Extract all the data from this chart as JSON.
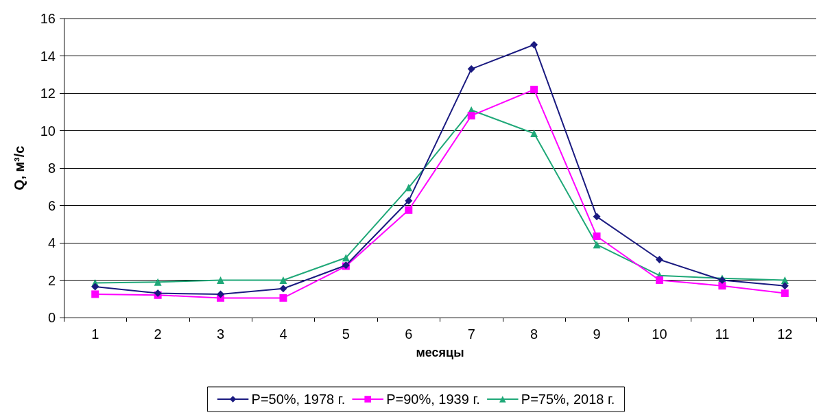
{
  "chart_data": {
    "type": "line",
    "xlabel": "месяцы",
    "ylabel": "Q, м³/с",
    "categories": [
      "1",
      "2",
      "3",
      "4",
      "5",
      "6",
      "7",
      "8",
      "9",
      "10",
      "11",
      "12"
    ],
    "series": [
      {
        "name": "P=50%, 1978 г.",
        "color": "#1a1a80",
        "marker": "diamond",
        "values": [
          1.65,
          1.3,
          1.25,
          1.55,
          2.8,
          6.25,
          13.3,
          14.6,
          5.4,
          3.1,
          2.0,
          1.7
        ]
      },
      {
        "name": "P=90%, 1939 г.",
        "color": "#ff00ff",
        "marker": "square",
        "values": [
          1.25,
          1.2,
          1.05,
          1.05,
          2.75,
          5.75,
          10.8,
          12.2,
          4.35,
          2.0,
          1.7,
          1.3
        ]
      },
      {
        "name": "P=75%, 2018 г.",
        "color": "#1fa878",
        "marker": "triangle",
        "values": [
          1.85,
          1.9,
          2.0,
          2.0,
          3.2,
          6.95,
          11.1,
          9.85,
          3.9,
          2.25,
          2.1,
          2.0
        ]
      }
    ],
    "ylim": [
      0,
      16
    ],
    "yticks": [
      0,
      2,
      4,
      6,
      8,
      10,
      12,
      14,
      16
    ],
    "grid": "y",
    "legend": "bottom",
    "line_style": "solid"
  }
}
